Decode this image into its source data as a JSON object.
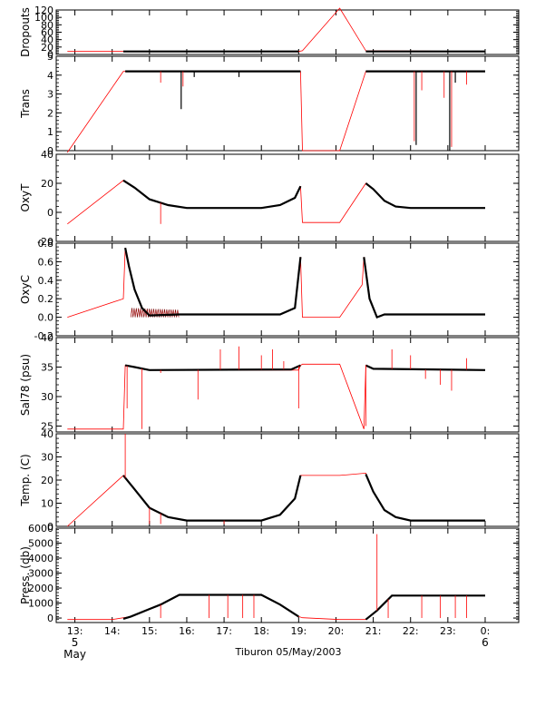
{
  "chart_data": {
    "type": "line",
    "figure_title": "Tiburon 05/May/2003",
    "series_colors": {
      "raw": "#ff0000",
      "data": "#000000"
    },
    "x_range": [
      12.5,
      24.9
    ],
    "x_ticks": [
      {
        "value": 13,
        "label": "13:"
      },
      {
        "value": 14,
        "label": "14:"
      },
      {
        "value": 15,
        "label": "15:"
      },
      {
        "value": 16,
        "label": "16:"
      },
      {
        "value": 17,
        "label": "17:"
      },
      {
        "value": 18,
        "label": "18:"
      },
      {
        "value": 19,
        "label": "19:"
      },
      {
        "value": 20,
        "label": "20:"
      },
      {
        "value": 21,
        "label": "21:"
      },
      {
        "value": 22,
        "label": "22:"
      },
      {
        "value": 23,
        "label": "23:"
      },
      {
        "value": 24,
        "label": "0:"
      }
    ],
    "date_labels": [
      {
        "value": 13,
        "label": "5"
      },
      {
        "value": 13,
        "label": "May"
      },
      {
        "value": 24,
        "label": "6"
      }
    ],
    "panels": [
      {
        "ylabel": "Dropouts",
        "ylim": [
          0,
          120
        ],
        "yticks": [
          {
            "v": 0,
            "l": "0"
          },
          {
            "v": 20,
            "l": "20"
          },
          {
            "v": 40,
            "l": "40"
          },
          {
            "v": 60,
            "l": "60"
          },
          {
            "v": 80,
            "l": "80"
          },
          {
            "v": 100,
            "l": "100"
          },
          {
            "v": 120,
            "l": "120"
          }
        ],
        "red_line": [
          [
            12.8,
            8
          ],
          [
            14.3,
            8
          ],
          [
            19.0,
            8
          ],
          [
            19.1,
            10
          ],
          [
            20.1,
            125
          ],
          [
            20.8,
            10
          ],
          [
            24.0,
            8
          ]
        ],
        "black_segments": [
          [
            [
              14.3,
              8
            ],
            [
              19.0,
              8
            ]
          ],
          [
            [
              20.8,
              8
            ],
            [
              24.0,
              8
            ]
          ]
        ],
        "red_spikes": [],
        "black_spikes": []
      },
      {
        "ylabel": "Trans",
        "ylim": [
          0,
          5
        ],
        "yticks": [
          {
            "v": 0,
            "l": "0"
          },
          {
            "v": 1,
            "l": "1"
          },
          {
            "v": 2,
            "l": "2"
          },
          {
            "v": 3,
            "l": "3"
          },
          {
            "v": 4,
            "l": "4"
          },
          {
            "v": 5,
            "l": "5"
          }
        ],
        "red_line": [
          [
            12.8,
            -0.3
          ],
          [
            14.3,
            4.2
          ],
          [
            15.9,
            4.2
          ],
          [
            19.05,
            4.2
          ],
          [
            19.1,
            0
          ],
          [
            20.1,
            0
          ],
          [
            20.8,
            4.2
          ],
          [
            24.0,
            4.2
          ]
        ],
        "black_segments": [
          [
            [
              14.35,
              4.2
            ],
            [
              19.05,
              4.2
            ]
          ],
          [
            [
              20.8,
              4.2
            ],
            [
              24.0,
              4.2
            ]
          ]
        ],
        "red_spikes": [
          [
            14.3,
            1.0
          ],
          [
            15.3,
            3.6
          ],
          [
            15.9,
            3.4
          ],
          [
            22.1,
            0.5
          ],
          [
            22.3,
            3.2
          ],
          [
            22.9,
            2.8
          ],
          [
            23.1,
            0.2
          ],
          [
            23.5,
            3.5
          ]
        ],
        "black_spikes": [
          [
            15.85,
            2.2
          ],
          [
            16.2,
            3.9
          ],
          [
            17.4,
            3.9
          ],
          [
            22.15,
            0.3
          ],
          [
            23.05,
            0.0
          ],
          [
            23.2,
            3.6
          ]
        ]
      },
      {
        "ylabel": "OxyT",
        "ylim": [
          -20,
          40
        ],
        "yticks": [
          {
            "v": -20,
            "l": "-20"
          },
          {
            "v": 0,
            "l": "0"
          },
          {
            "v": 20,
            "l": "20"
          },
          {
            "v": 40,
            "l": "40"
          }
        ],
        "red_line": [
          [
            12.8,
            -8
          ],
          [
            14.3,
            22
          ],
          [
            14.6,
            17
          ],
          [
            15.0,
            9
          ],
          [
            15.5,
            5
          ],
          [
            16.0,
            3
          ],
          [
            18.0,
            3
          ],
          [
            18.5,
            5
          ],
          [
            18.9,
            10
          ],
          [
            19.05,
            18
          ],
          [
            19.1,
            -7
          ],
          [
            20.1,
            -7
          ],
          [
            20.8,
            20
          ],
          [
            21.0,
            16
          ],
          [
            21.3,
            8
          ],
          [
            21.6,
            4
          ],
          [
            22.0,
            3
          ],
          [
            24.0,
            3
          ]
        ],
        "black_segments": [
          [
            [
              14.3,
              22
            ],
            [
              14.6,
              17
            ],
            [
              15.0,
              9
            ],
            [
              15.5,
              5
            ],
            [
              16.0,
              3
            ],
            [
              18.0,
              3
            ],
            [
              18.5,
              5
            ],
            [
              18.9,
              10
            ],
            [
              19.05,
              18
            ]
          ],
          [
            [
              20.8,
              20
            ],
            [
              21.0,
              16
            ],
            [
              21.3,
              8
            ],
            [
              21.6,
              4
            ],
            [
              22.0,
              3
            ],
            [
              24.0,
              3
            ]
          ]
        ],
        "red_spikes": [
          [
            15.3,
            -8
          ]
        ],
        "black_spikes": []
      },
      {
        "ylabel": "OxyC",
        "ylim": [
          -0.2,
          0.8
        ],
        "yticks": [
          {
            "v": -0.2,
            "l": "-0.2"
          },
          {
            "v": 0.0,
            "l": "0.0"
          },
          {
            "v": 0.2,
            "l": "0.2"
          },
          {
            "v": 0.4,
            "l": "0.4"
          },
          {
            "v": 0.6,
            "l": "0.6"
          },
          {
            "v": 0.8,
            "l": "0.8"
          }
        ],
        "red_line": [
          [
            12.8,
            0.0
          ],
          [
            14.3,
            0.2
          ],
          [
            14.35,
            0.75
          ],
          [
            14.6,
            0.3
          ],
          [
            14.8,
            0.1
          ],
          [
            15.0,
            0.02
          ],
          [
            15.8,
            0.03
          ],
          [
            18.5,
            0.03
          ],
          [
            18.9,
            0.1
          ],
          [
            19.05,
            0.65
          ],
          [
            19.1,
            0.0
          ],
          [
            20.1,
            0.0
          ],
          [
            20.7,
            0.35
          ],
          [
            20.75,
            0.65
          ],
          [
            20.9,
            0.2
          ],
          [
            21.1,
            0.0
          ],
          [
            21.3,
            0.03
          ],
          [
            24.0,
            0.03
          ]
        ],
        "black_segments": [
          [
            [
              14.35,
              0.75
            ],
            [
              14.45,
              0.55
            ],
            [
              14.6,
              0.3
            ],
            [
              14.8,
              0.1
            ],
            [
              15.0,
              0.02
            ],
            [
              15.8,
              0.03
            ],
            [
              18.5,
              0.03
            ],
            [
              18.9,
              0.1
            ],
            [
              19.05,
              0.65
            ]
          ],
          [
            [
              20.75,
              0.65
            ],
            [
              20.9,
              0.2
            ],
            [
              21.1,
              0.0
            ],
            [
              21.3,
              0.03
            ],
            [
              24.0,
              0.03
            ]
          ]
        ],
        "red_spikes": [],
        "black_spikes": [],
        "noise_band": {
          "x_start": 14.5,
          "x_end": 15.8,
          "y_low": 0.0,
          "y_high": 0.1
        }
      },
      {
        "ylabel": "Sal78 (psu)",
        "ylim": [
          24,
          40
        ],
        "yticks": [
          {
            "v": 25,
            "l": "25"
          },
          {
            "v": 30,
            "l": "30"
          },
          {
            "v": 35,
            "l": "35"
          },
          {
            "v": 40,
            "l": "40"
          }
        ],
        "red_line": [
          [
            12.8,
            24.5
          ],
          [
            14.3,
            24.5
          ],
          [
            14.35,
            35.3
          ],
          [
            14.6,
            35
          ],
          [
            15.0,
            34.5
          ],
          [
            19.0,
            34.5
          ],
          [
            19.05,
            35.3
          ],
          [
            19.1,
            35.5
          ],
          [
            20.1,
            35.5
          ],
          [
            20.75,
            24.5
          ],
          [
            20.8,
            35.3
          ],
          [
            21.0,
            34.7
          ],
          [
            24.0,
            34.5
          ]
        ],
        "black_segments": [
          [
            [
              14.35,
              35.3
            ],
            [
              14.6,
              35
            ],
            [
              15.0,
              34.5
            ],
            [
              18.8,
              34.6
            ],
            [
              19.05,
              35.3
            ]
          ],
          [
            [
              20.8,
              35.3
            ],
            [
              21.0,
              34.7
            ],
            [
              24.0,
              34.5
            ]
          ]
        ],
        "red_spikes": [
          [
            14.4,
            28
          ],
          [
            14.8,
            24.5
          ],
          [
            15.3,
            34
          ],
          [
            16.3,
            29.5
          ],
          [
            16.9,
            38
          ],
          [
            17.4,
            38.5
          ],
          [
            18.0,
            37
          ],
          [
            18.3,
            38
          ],
          [
            18.6,
            36
          ],
          [
            19.0,
            28
          ],
          [
            20.8,
            25
          ],
          [
            21.5,
            38
          ],
          [
            22.0,
            37
          ],
          [
            22.4,
            33
          ],
          [
            22.8,
            32
          ],
          [
            23.1,
            31
          ],
          [
            23.5,
            36.5
          ]
        ],
        "black_spikes": []
      },
      {
        "ylabel": "Temp. (C)",
        "ylim": [
          0,
          40
        ],
        "yticks": [
          {
            "v": 0,
            "l": "0"
          },
          {
            "v": 10,
            "l": "10"
          },
          {
            "v": 20,
            "l": "20"
          },
          {
            "v": 30,
            "l": "30"
          },
          {
            "v": 40,
            "l": "40"
          }
        ],
        "red_line": [
          [
            12.8,
            0
          ],
          [
            14.3,
            22
          ],
          [
            14.6,
            16
          ],
          [
            15.0,
            8
          ],
          [
            15.5,
            4
          ],
          [
            16.0,
            2.5
          ],
          [
            18.0,
            2.5
          ],
          [
            18.5,
            5
          ],
          [
            18.9,
            12
          ],
          [
            19.05,
            22
          ],
          [
            19.1,
            22
          ],
          [
            20.1,
            22
          ],
          [
            20.8,
            23
          ],
          [
            21.0,
            15
          ],
          [
            21.3,
            7
          ],
          [
            21.6,
            4
          ],
          [
            22.0,
            2.5
          ],
          [
            24.0,
            2.5
          ]
        ],
        "black_segments": [
          [
            [
              14.3,
              22
            ],
            [
              14.6,
              16
            ],
            [
              15.0,
              8
            ],
            [
              15.5,
              4
            ],
            [
              16.0,
              2.5
            ],
            [
              18.0,
              2.5
            ],
            [
              18.5,
              5
            ],
            [
              18.9,
              12
            ],
            [
              19.05,
              22
            ]
          ],
          [
            [
              20.8,
              22.5
            ],
            [
              21.0,
              15
            ],
            [
              21.3,
              7
            ],
            [
              21.6,
              4
            ],
            [
              22.0,
              2.5
            ],
            [
              24.0,
              2.5
            ]
          ]
        ],
        "red_spikes": [
          [
            14.35,
            40
          ],
          [
            15.0,
            1
          ],
          [
            15.3,
            1
          ],
          [
            17.0,
            1
          ]
        ],
        "black_spikes": []
      },
      {
        "ylabel": "Press. (db)",
        "ylim": [
          -300,
          6000
        ],
        "yticks": [
          {
            "v": 0,
            "l": "0"
          },
          {
            "v": 1000,
            "l": "1000"
          },
          {
            "v": 2000,
            "l": "2000"
          },
          {
            "v": 3000,
            "l": "3000"
          },
          {
            "v": 4000,
            "l": "4000"
          },
          {
            "v": 5000,
            "l": "5000"
          },
          {
            "v": 6000,
            "l": "6000"
          }
        ],
        "red_line": [
          [
            12.8,
            -100
          ],
          [
            14.0,
            -100
          ],
          [
            14.5,
            100
          ],
          [
            15.0,
            600
          ],
          [
            15.3,
            900
          ],
          [
            15.8,
            1550
          ],
          [
            18.0,
            1550
          ],
          [
            18.5,
            900
          ],
          [
            19.0,
            100
          ],
          [
            19.1,
            20
          ],
          [
            20.1,
            -100
          ],
          [
            20.8,
            -100
          ],
          [
            21.1,
            500
          ],
          [
            21.5,
            1500
          ],
          [
            24.0,
            1500
          ]
        ],
        "black_segments": [
          [
            [
              14.3,
              -50
            ],
            [
              14.5,
              100
            ],
            [
              15.0,
              600
            ],
            [
              15.3,
              900
            ],
            [
              15.8,
              1550
            ],
            [
              18.0,
              1550
            ],
            [
              18.5,
              900
            ],
            [
              19.0,
              100
            ]
          ],
          [
            [
              20.8,
              -100
            ],
            [
              21.1,
              500
            ],
            [
              21.5,
              1500
            ],
            [
              24.0,
              1500
            ]
          ]
        ],
        "red_spikes": [
          [
            15.3,
            0
          ],
          [
            16.6,
            0
          ],
          [
            17.1,
            0
          ],
          [
            17.5,
            0
          ],
          [
            17.8,
            0
          ],
          [
            21.1,
            5600
          ],
          [
            21.4,
            0
          ],
          [
            22.3,
            0
          ],
          [
            22.8,
            0
          ],
          [
            23.2,
            0
          ],
          [
            23.5,
            0
          ]
        ],
        "black_spikes": []
      }
    ]
  }
}
